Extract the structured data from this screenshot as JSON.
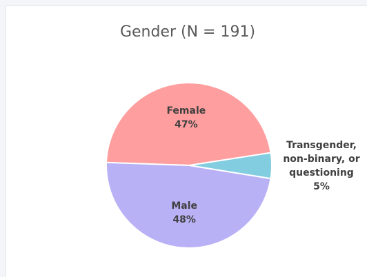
{
  "chart_data": {
    "type": "pie",
    "title": "Gender (N = 191)",
    "categories": [
      "Female",
      "Transgender, non-binary, or questioning",
      "Male"
    ],
    "values": [
      47,
      5,
      48
    ],
    "value_labels": [
      "47%",
      "5%",
      "48%"
    ],
    "colors": [
      "#ff9e9e",
      "#82cde0",
      "#b9b1f6"
    ]
  }
}
